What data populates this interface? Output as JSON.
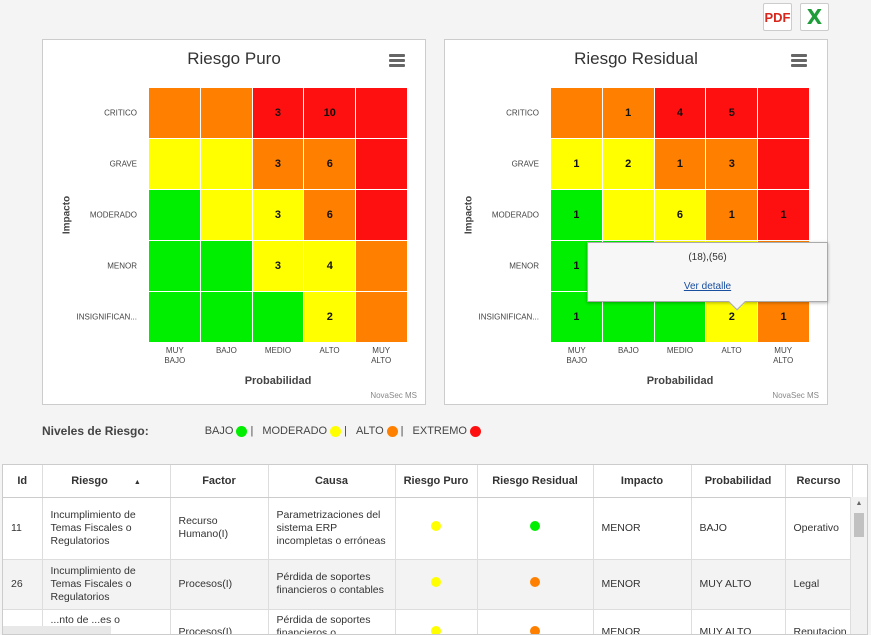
{
  "export": {
    "pdf_label": "PDF",
    "excel_label": "X"
  },
  "colors": {
    "bajo": "#00ee00",
    "moderado": "#ffff00",
    "alto": "#ff8000",
    "extremo": "#ff1010"
  },
  "charts": [
    {
      "title": "Riesgo Puro",
      "ylabel": "Impacto",
      "xlabel": "Probabilidad",
      "credit": "NovaSec MS",
      "y_categories": [
        "CRITICO",
        "GRAVE",
        "MODERADO",
        "MENOR",
        "INSIGNIFICAN..."
      ],
      "x_categories": [
        [
          "MUY",
          "BAJO"
        ],
        [
          "BAJO"
        ],
        [
          "MEDIO"
        ],
        [
          "ALTO"
        ],
        [
          "MUY",
          "ALTO"
        ]
      ],
      "cells": [
        [
          {
            "level": "alto",
            "v": ""
          },
          {
            "level": "alto",
            "v": ""
          },
          {
            "level": "extremo",
            "v": "3"
          },
          {
            "level": "extremo",
            "v": "10"
          },
          {
            "level": "extremo",
            "v": ""
          }
        ],
        [
          {
            "level": "moderado",
            "v": ""
          },
          {
            "level": "moderado",
            "v": ""
          },
          {
            "level": "alto",
            "v": "3"
          },
          {
            "level": "alto",
            "v": "6"
          },
          {
            "level": "extremo",
            "v": ""
          }
        ],
        [
          {
            "level": "bajo",
            "v": ""
          },
          {
            "level": "moderado",
            "v": ""
          },
          {
            "level": "moderado",
            "v": "3"
          },
          {
            "level": "alto",
            "v": "6"
          },
          {
            "level": "extremo",
            "v": ""
          }
        ],
        [
          {
            "level": "bajo",
            "v": ""
          },
          {
            "level": "bajo",
            "v": ""
          },
          {
            "level": "moderado",
            "v": "3"
          },
          {
            "level": "moderado",
            "v": "4"
          },
          {
            "level": "alto",
            "v": ""
          }
        ],
        [
          {
            "level": "bajo",
            "v": ""
          },
          {
            "level": "bajo",
            "v": ""
          },
          {
            "level": "bajo",
            "v": ""
          },
          {
            "level": "moderado",
            "v": "2"
          },
          {
            "level": "alto",
            "v": ""
          }
        ]
      ]
    },
    {
      "title": "Riesgo Residual",
      "ylabel": "Impacto",
      "xlabel": "Probabilidad",
      "credit": "NovaSec MS",
      "y_categories": [
        "CRITICO",
        "GRAVE",
        "MODERADO",
        "MENOR",
        "INSIGNIFICAN..."
      ],
      "x_categories": [
        [
          "MUY",
          "BAJO"
        ],
        [
          "BAJO"
        ],
        [
          "MEDIO"
        ],
        [
          "ALTO"
        ],
        [
          "MUY",
          "ALTO"
        ]
      ],
      "cells": [
        [
          {
            "level": "alto",
            "v": ""
          },
          {
            "level": "alto",
            "v": "1"
          },
          {
            "level": "extremo",
            "v": "4"
          },
          {
            "level": "extremo",
            "v": "5"
          },
          {
            "level": "extremo",
            "v": ""
          }
        ],
        [
          {
            "level": "moderado",
            "v": "1"
          },
          {
            "level": "moderado",
            "v": "2"
          },
          {
            "level": "alto",
            "v": "1"
          },
          {
            "level": "alto",
            "v": "3"
          },
          {
            "level": "extremo",
            "v": ""
          }
        ],
        [
          {
            "level": "bajo",
            "v": "1"
          },
          {
            "level": "moderado",
            "v": ""
          },
          {
            "level": "moderado",
            "v": "6"
          },
          {
            "level": "alto",
            "v": "1"
          },
          {
            "level": "extremo",
            "v": "1"
          }
        ],
        [
          {
            "level": "bajo",
            "v": "1"
          },
          {
            "level": "bajo",
            "v": ""
          },
          {
            "level": "moderado",
            "v": ""
          },
          {
            "level": "moderado",
            "v": ""
          },
          {
            "level": "alto",
            "v": ""
          }
        ],
        [
          {
            "level": "bajo",
            "v": "1"
          },
          {
            "level": "bajo",
            "v": ""
          },
          {
            "level": "bajo",
            "v": ""
          },
          {
            "level": "moderado",
            "v": "2"
          },
          {
            "level": "alto",
            "v": "1"
          }
        ]
      ]
    }
  ],
  "tooltip": {
    "text": "(18),(56)",
    "link": "Ver detalle"
  },
  "legend": {
    "title": "Niveles de Riesgo:",
    "items": [
      {
        "label": "BAJO",
        "color": "#00ee00"
      },
      {
        "label": "MODERADO",
        "color": "#ffff00"
      },
      {
        "label": "ALTO",
        "color": "#ff8000"
      },
      {
        "label": "EXTREMO",
        "color": "#ff1010"
      }
    ]
  },
  "table": {
    "headers": [
      "Id",
      "Riesgo",
      "Factor",
      "Causa",
      "Riesgo Puro",
      "Riesgo Residual",
      "Impacto",
      "Probabilidad",
      "Recurso"
    ],
    "rows": [
      {
        "id": "11",
        "riesgo": "Incumplimiento de Temas Fiscales o Regulatorios",
        "factor": "Recurso Humano(I)",
        "causa": "Parametrizaciones del sistema ERP incompletas o erróneas",
        "puro": "#ffff00",
        "residual": "#00ee00",
        "impacto": "MENOR",
        "probabilidad": "BAJO",
        "recurso": "Operativo"
      },
      {
        "id": "26",
        "riesgo": "Incumplimiento de Temas Fiscales o Regulatorios",
        "factor": "Procesos(I)",
        "causa": "Pérdida de soportes financieros o contables",
        "puro": "#ffff00",
        "residual": "#ff8000",
        "impacto": "MENOR",
        "probabilidad": "MUY ALTO",
        "recurso": "Legal"
      },
      {
        "id": "",
        "riesgo": "...nto de ...es o",
        "factor": "Procesos(I)",
        "causa": "Pérdida de soportes financieros o",
        "puro": "#ffff00",
        "residual": "#ff8000",
        "impacto": "MENOR",
        "probabilidad": "MUY ALTO",
        "recurso": "Reputacion"
      }
    ]
  }
}
